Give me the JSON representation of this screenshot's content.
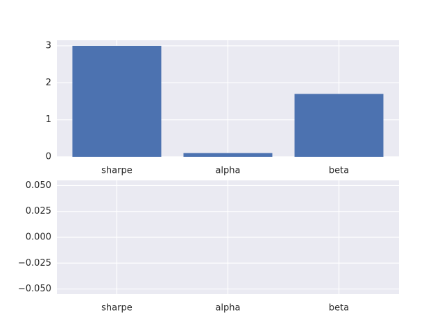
{
  "chart_data": [
    {
      "type": "bar",
      "categories": [
        "sharpe",
        "alpha",
        "beta"
      ],
      "values": [
        3.0,
        0.1,
        1.7
      ],
      "color": "#4c72b0",
      "ylim": [
        0,
        3.15
      ],
      "yticks": [
        0,
        1,
        2,
        3
      ],
      "grid": true
    },
    {
      "type": "bar",
      "categories": [
        "sharpe",
        "alpha",
        "beta"
      ],
      "ylim": [
        -0.055,
        0.055
      ],
      "yticks": [
        {
          "value": -0.05,
          "label": "−0.050"
        },
        {
          "value": -0.025,
          "label": "−0.025"
        },
        {
          "value": 0,
          "label": "0.000"
        },
        {
          "value": 0.025,
          "label": "0.025"
        },
        {
          "value": 0.05,
          "label": "0.050"
        }
      ],
      "grid": true
    }
  ]
}
